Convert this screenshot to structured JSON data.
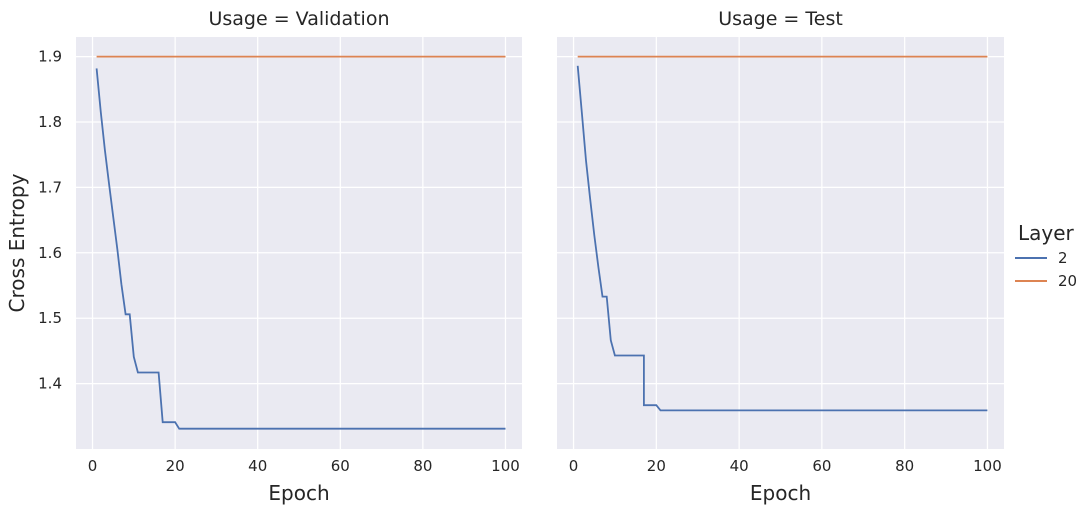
{
  "chart_data": [
    {
      "type": "line",
      "title": "Usage = Validation",
      "xlabel": "Epoch",
      "ylabel": "Cross Entropy",
      "xlim": [
        -4,
        104
      ],
      "ylim": [
        1.3,
        1.93
      ],
      "xticks": [
        0,
        20,
        40,
        60,
        80,
        100
      ],
      "yticks": [
        1.4,
        1.5,
        1.6,
        1.7,
        1.8,
        1.9
      ],
      "grid": true,
      "series": [
        {
          "name": "2",
          "color": "#4c72b0",
          "points": [
            [
              1,
              1.882
            ],
            [
              2,
              1.815
            ],
            [
              3,
              1.757
            ],
            [
              4,
              1.706
            ],
            [
              5,
              1.655
            ],
            [
              6,
              1.606
            ],
            [
              7,
              1.552
            ],
            [
              8,
              1.506
            ],
            [
              9,
              1.506
            ],
            [
              10,
              1.441
            ],
            [
              11,
              1.417
            ],
            [
              16,
              1.417
            ],
            [
              17,
              1.341
            ],
            [
              20,
              1.341
            ],
            [
              21,
              1.331
            ],
            [
              100,
              1.331
            ]
          ]
        },
        {
          "name": "20",
          "color": "#dd8452",
          "points": [
            [
              1,
              1.9
            ],
            [
              100,
              1.9
            ]
          ]
        }
      ]
    },
    {
      "type": "line",
      "title": "Usage = Test",
      "xlabel": "Epoch",
      "ylabel": "",
      "xlim": [
        -4,
        104
      ],
      "ylim": [
        1.3,
        1.93
      ],
      "xticks": [
        0,
        20,
        40,
        60,
        80,
        100
      ],
      "yticks": [
        1.4,
        1.5,
        1.6,
        1.7,
        1.8,
        1.9
      ],
      "grid": true,
      "series": [
        {
          "name": "2",
          "color": "#4c72b0",
          "points": [
            [
              1,
              1.886
            ],
            [
              2,
              1.815
            ],
            [
              3,
              1.741
            ],
            [
              4,
              1.683
            ],
            [
              5,
              1.627
            ],
            [
              6,
              1.578
            ],
            [
              7,
              1.533
            ],
            [
              8,
              1.533
            ],
            [
              9,
              1.466
            ],
            [
              10,
              1.443
            ],
            [
              17,
              1.443
            ],
            [
              17,
              1.367
            ],
            [
              20,
              1.367
            ],
            [
              21,
              1.359
            ],
            [
              100,
              1.359
            ]
          ]
        },
        {
          "name": "20",
          "color": "#dd8452",
          "points": [
            [
              1,
              1.9
            ],
            [
              100,
              1.9
            ]
          ]
        }
      ]
    }
  ],
  "legend": {
    "title": "Layer",
    "placement": "right",
    "entries": [
      {
        "label": "2",
        "color": "#4c72b0"
      },
      {
        "label": "20",
        "color": "#dd8452"
      }
    ]
  }
}
